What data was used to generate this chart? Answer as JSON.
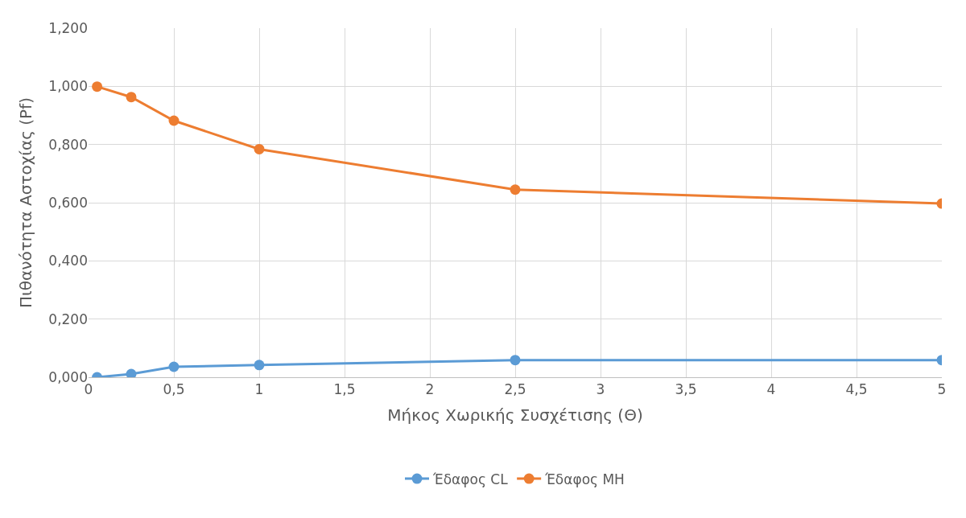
{
  "chart_data": {
    "type": "line",
    "xlabel": "Μήκος Χωρικής Συσχέτισης (Θ)",
    "ylabel": "Πιθανότητα Αστοχίας (Pf)",
    "x": [
      0.05,
      0.25,
      0.5,
      1,
      2.5,
      5
    ],
    "series": [
      {
        "name": "Έδαφος CL",
        "color": "#5b9bd5",
        "values": [
          0.0,
          0.011,
          0.036,
          0.042,
          0.059,
          0.059
        ]
      },
      {
        "name": "Έδαφος MH",
        "color": "#ed7d31",
        "values": [
          0.999,
          0.963,
          0.882,
          0.784,
          0.645,
          0.597
        ]
      }
    ],
    "xlim": [
      0,
      5
    ],
    "xticks": [
      0,
      {
        "value": 0.5,
        "label": "0,5"
      },
      1,
      {
        "value": 1.5,
        "label": "1,5"
      },
      2,
      {
        "value": 2.5,
        "label": "2,5"
      },
      3,
      {
        "value": 3.5,
        "label": "3,5"
      },
      4,
      {
        "value": 4.5,
        "label": "4,5"
      },
      5
    ],
    "ylim": [
      0,
      1.2
    ],
    "yticks": [
      {
        "value": 0,
        "label": "0,000"
      },
      {
        "value": 0.2,
        "label": "0,200"
      },
      {
        "value": 0.4,
        "label": "0,400"
      },
      {
        "value": 0.6,
        "label": "0,600"
      },
      {
        "value": 0.8,
        "label": "0,800"
      },
      {
        "value": 1,
        "label": "1,000"
      },
      {
        "value": 1.2,
        "label": "1,200"
      }
    ],
    "grid": true,
    "legend": "bottom",
    "marker": "circle",
    "line_style": "solid"
  }
}
